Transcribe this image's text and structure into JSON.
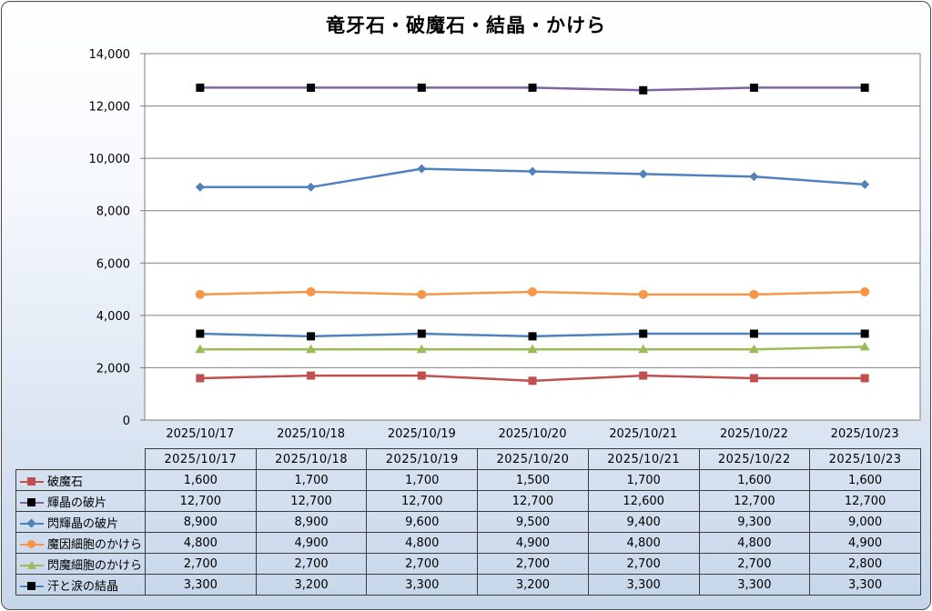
{
  "chart_data": {
    "type": "line",
    "title": "竜牙石・破魔石・結晶・かけら",
    "categories": [
      "2025/10/17",
      "2025/10/18",
      "2025/10/19",
      "2025/10/20",
      "2025/10/21",
      "2025/10/22",
      "2025/10/23"
    ],
    "ylim": [
      0,
      14000
    ],
    "yticks": [
      "0",
      "2,000",
      "4,000",
      "6,000",
      "8,000",
      "10,000",
      "12,000",
      "14,000"
    ],
    "grid": true,
    "legend": "data-table",
    "series": [
      {
        "name": "破魔石",
        "color": "#c0504d",
        "marker": "square",
        "values": [
          1600,
          1700,
          1700,
          1500,
          1700,
          1600,
          1600
        ],
        "labels": [
          "1,600",
          "1,700",
          "1,700",
          "1,500",
          "1,700",
          "1,600",
          "1,600"
        ]
      },
      {
        "name": "輝晶の破片",
        "color": "#8064a2",
        "marker": "square-black",
        "values": [
          12700,
          12700,
          12700,
          12700,
          12600,
          12700,
          12700
        ],
        "labels": [
          "12,700",
          "12,700",
          "12,700",
          "12,700",
          "12,600",
          "12,700",
          "12,700"
        ]
      },
      {
        "name": "閃輝晶の破片",
        "color": "#4f81bd",
        "marker": "diamond",
        "values": [
          8900,
          8900,
          9600,
          9500,
          9400,
          9300,
          9000
        ],
        "labels": [
          "8,900",
          "8,900",
          "9,600",
          "9,500",
          "9,400",
          "9,300",
          "9,000"
        ]
      },
      {
        "name": "魔因細胞のかけら",
        "color": "#f79646",
        "marker": "circle",
        "values": [
          4800,
          4900,
          4800,
          4900,
          4800,
          4800,
          4900
        ],
        "labels": [
          "4,800",
          "4,900",
          "4,800",
          "4,900",
          "4,800",
          "4,800",
          "4,900"
        ]
      },
      {
        "name": "閃魔細胞のかけら",
        "color": "#9bbb59",
        "marker": "triangle",
        "values": [
          2700,
          2700,
          2700,
          2700,
          2700,
          2700,
          2800
        ],
        "labels": [
          "2,700",
          "2,700",
          "2,700",
          "2,700",
          "2,700",
          "2,700",
          "2,800"
        ]
      },
      {
        "name": "汗と涙の結晶",
        "color": "#4f81bd",
        "marker": "square-black",
        "values": [
          3300,
          3200,
          3300,
          3200,
          3300,
          3300,
          3300
        ],
        "labels": [
          "3,300",
          "3,200",
          "3,300",
          "3,200",
          "3,300",
          "3,300",
          "3,300"
        ]
      }
    ]
  }
}
